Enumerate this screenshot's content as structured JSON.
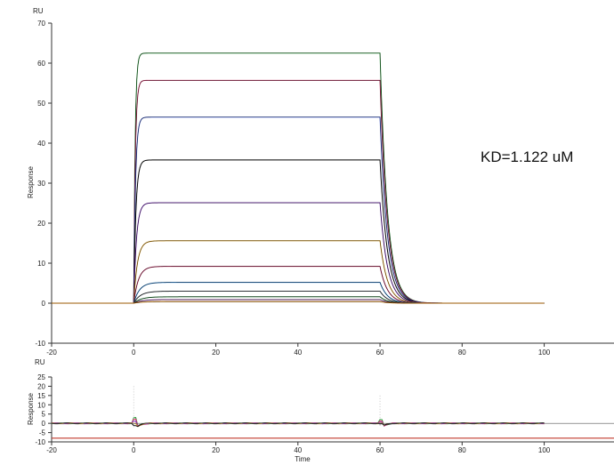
{
  "chart_data": [
    {
      "type": "line",
      "title": "",
      "ylabel": "Response",
      "yunit": "RU",
      "xlabel": "",
      "xlim": [
        -20,
        117
      ],
      "ylim": [
        -10,
        70
      ],
      "xticks": [
        -20,
        0,
        20,
        40,
        60,
        80,
        100
      ],
      "yticks": [
        -10,
        0,
        10,
        20,
        30,
        40,
        50,
        60,
        70
      ],
      "annotation": "KD=1.122 uM",
      "association_start": 0,
      "dissociation_start": 60,
      "curve_end": 100,
      "plateaus": [
        62.5,
        55.7,
        46.5,
        35.8,
        25.1,
        15.6,
        9.2,
        5.2,
        3.0,
        1.6,
        0.9,
        0.4
      ],
      "colors": [
        "#2a9d3a",
        "#d6336c",
        "#3b5bdb",
        "#111111",
        "#7b2cbf",
        "#e8a317",
        "#c2255c",
        "#1c7ed6",
        "#495057",
        "#2b8a3e",
        "#862e9c",
        "#f08c00"
      ],
      "series": [
        {
          "values": [
            62.5,
            55.7,
            46.5,
            35.8,
            25.1,
            15.6,
            9.2,
            5.2,
            3.0,
            1.6,
            0.9,
            0.4
          ]
        }
      ]
    },
    {
      "type": "line",
      "title": "",
      "ylabel": "Response",
      "yunit": "RU",
      "xlabel": "Time",
      "xlim": [
        -20,
        117
      ],
      "ylim": [
        -10,
        25
      ],
      "xticks": [
        -20,
        0,
        20,
        40,
        60,
        80,
        100
      ],
      "yticks": [
        -10,
        -5,
        0,
        5,
        10,
        15,
        20,
        25
      ],
      "residual_baseline": 0,
      "lower_line": -8
    }
  ]
}
